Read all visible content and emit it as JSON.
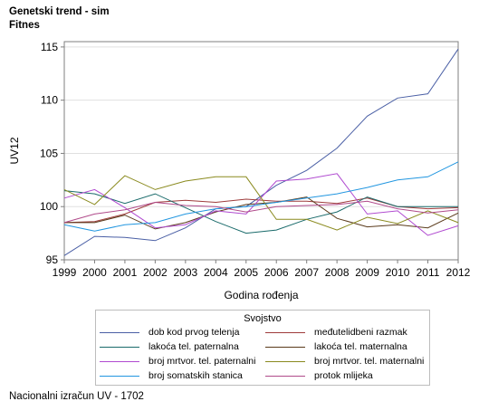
{
  "header": {
    "line1": "Genetski trend - sim",
    "line2": "Fitnes"
  },
  "footnote": "Nacionalni izračun UV - 1702",
  "chart_data": {
    "type": "line",
    "title": "Genetski trend - sim",
    "subtitle": "Fitnes",
    "xlabel": "Godina rođenja",
    "ylabel": "UV12",
    "xlim": [
      1999,
      2012
    ],
    "ylim": [
      95,
      115.5
    ],
    "x": [
      1999,
      2000,
      2001,
      2002,
      2003,
      2004,
      2005,
      2006,
      2007,
      2008,
      2009,
      2010,
      2011,
      2012
    ],
    "yticks": [
      95,
      100,
      105,
      110,
      115
    ],
    "grid": true,
    "legend": {
      "title": "Svojstvo",
      "placement": "bottom"
    },
    "series": [
      {
        "name": "dob kod prvog telenja",
        "color": "#4a5fa5",
        "values": [
          95.4,
          97.2,
          97.1,
          96.8,
          98.0,
          99.8,
          100.0,
          102.0,
          103.4,
          105.5,
          108.5,
          110.2,
          110.6,
          114.8
        ]
      },
      {
        "name": "međutelidbeni razmak",
        "color": "#9e3b3b",
        "values": [
          98.5,
          98.6,
          99.3,
          100.4,
          100.6,
          100.4,
          100.7,
          100.5,
          100.5,
          100.3,
          100.8,
          100.0,
          99.8,
          99.9
        ]
      },
      {
        "name": "lakoća tel. paternalna",
        "color": "#1a6b6b",
        "values": [
          101.5,
          101.2,
          100.3,
          101.2,
          99.9,
          98.6,
          97.5,
          97.8,
          98.8,
          99.5,
          100.9,
          100.0,
          100.0,
          100.0
        ]
      },
      {
        "name": "lakoća tel. maternalna",
        "color": "#5a3a1a",
        "values": [
          98.5,
          98.5,
          99.2,
          97.9,
          98.5,
          99.5,
          100.2,
          100.4,
          100.9,
          98.9,
          98.1,
          98.3,
          98.0,
          99.4
        ]
      },
      {
        "name": "broj mrtvor. tel. paternalni",
        "color": "#b04ad0",
        "values": [
          100.8,
          101.6,
          99.9,
          98.0,
          98.3,
          99.6,
          99.3,
          102.4,
          102.6,
          103.1,
          99.3,
          99.6,
          97.3,
          98.2
        ]
      },
      {
        "name": "broj mrtvor. tel. maternalni",
        "color": "#8a8a1e",
        "values": [
          101.6,
          100.2,
          102.9,
          101.6,
          102.4,
          102.8,
          102.8,
          98.8,
          98.8,
          97.8,
          99.0,
          98.4,
          99.6,
          98.5
        ]
      },
      {
        "name": "broj somatskih stanica",
        "color": "#2196e0",
        "values": [
          98.3,
          97.7,
          98.3,
          98.5,
          99.3,
          99.8,
          100.0,
          100.4,
          100.8,
          101.2,
          101.8,
          102.5,
          102.8,
          104.2
        ]
      },
      {
        "name": "protok mlijeka",
        "color": "#b04a8a",
        "values": [
          98.5,
          99.3,
          99.7,
          100.4,
          100.1,
          100.0,
          99.5,
          100.0,
          100.1,
          100.2,
          100.5,
          99.8,
          99.4,
          99.7
        ]
      }
    ]
  }
}
